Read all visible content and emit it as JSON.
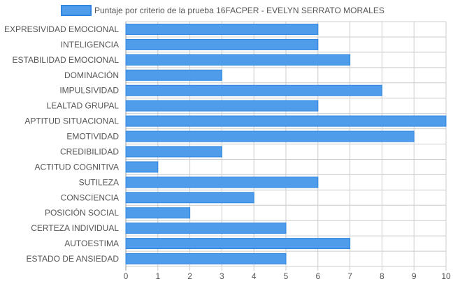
{
  "chart_data": {
    "type": "bar",
    "orientation": "horizontal",
    "title": "",
    "legend": {
      "position": "top",
      "label": "Puntaje por criterio de la prueba 16FACPER - EVELYN SERRATO MORALES"
    },
    "categories": [
      "EXPRESIVIDAD EMOCIONAL",
      "INTELIGENCIA",
      "ESTABILIDAD EMOCIONAL",
      "DOMINACIÓN",
      "IMPULSIVIDAD",
      "LEALTAD GRUPAL",
      "APTITUD SITUACIONAL",
      "EMOTIVIDAD",
      "CREDIBILIDAD",
      "ACTITUD COGNITIVA",
      "SUTILEZA",
      "CONSCIENCIA",
      "POSICIÓN SOCIAL",
      "CERTEZA INDIVIDUAL",
      "AUTOESTIMA",
      "ESTADO DE ANSIEDAD"
    ],
    "series": [
      {
        "name": "Puntaje por criterio de la prueba 16FACPER - EVELYN SERRATO MORALES",
        "values": [
          6,
          6,
          7,
          3,
          8,
          6,
          10,
          9,
          3,
          1,
          6,
          4,
          2,
          5,
          7,
          5
        ]
      }
    ],
    "xlim": [
      0,
      10
    ],
    "x_ticks": [
      "0",
      "1",
      "2",
      "3",
      "4",
      "5",
      "6",
      "7",
      "8",
      "9",
      "10"
    ],
    "xlabel": "",
    "ylabel": "",
    "grid": true,
    "colors": {
      "bar_fill": "#4e9cea",
      "bar_stroke": "#2f86e0",
      "grid": "#cccccc",
      "text": "#555555"
    }
  }
}
